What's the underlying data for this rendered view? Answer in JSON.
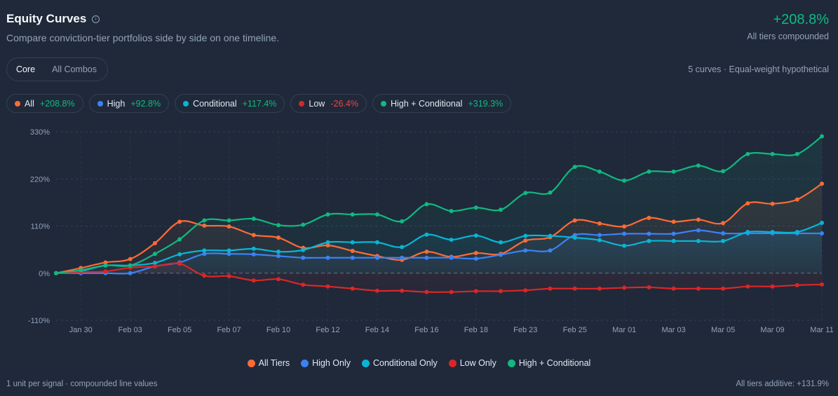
{
  "header": {
    "title": "Equity Curves",
    "info_icon": "info-circle-icon",
    "subtitle": "Compare conviction-tier portfolios side by side on one timeline.",
    "headline_value": "+208.8%",
    "headline_label": "All tiers compounded",
    "meta": "5 curves · Equal-weight hypothetical"
  },
  "tabs": [
    {
      "label": "Core",
      "active": true
    },
    {
      "label": "All Combos",
      "active": false
    }
  ],
  "chips": [
    {
      "name": "All",
      "value": "+208.8%",
      "color": "#ff6b35",
      "sign": "pos"
    },
    {
      "name": "High",
      "value": "+92.8%",
      "color": "#3b82f6",
      "sign": "pos"
    },
    {
      "name": "Conditional",
      "value": "+117.4%",
      "color": "#06b6d4",
      "sign": "pos"
    },
    {
      "name": "Low",
      "value": "-26.4%",
      "color": "#dc2626",
      "sign": "neg"
    },
    {
      "name": "High + Conditional",
      "value": "+319.3%",
      "color": "#10b981",
      "sign": "pos"
    }
  ],
  "chart_data": {
    "type": "line",
    "ylim": [
      -110,
      330
    ],
    "y_ticks": [
      330,
      220,
      110,
      0,
      -110
    ],
    "y_tick_labels": [
      "330%",
      "220%",
      "110%",
      "0%",
      "-110%"
    ],
    "x_tick_labels": [
      "Jan 30",
      "Feb 03",
      "Feb 05",
      "Feb 07",
      "Feb 10",
      "Feb 12",
      "Feb 14",
      "Feb 16",
      "Feb 18",
      "Feb 23",
      "Feb 25",
      "Mar 01",
      "Mar 03",
      "Mar 05",
      "Mar 09",
      "Mar 11"
    ],
    "grid": true,
    "legend_placement": "bottom",
    "series": [
      {
        "name": "All Tiers",
        "color": "#ff6b35",
        "values": [
          0,
          12,
          25,
          33,
          70,
          120,
          111,
          109,
          89,
          83,
          59,
          65,
          52,
          40,
          31,
          50,
          38,
          47,
          45,
          76,
          84,
          123,
          116,
          109,
          129,
          120,
          125,
          117,
          163,
          162,
          172,
          208.8
        ]
      },
      {
        "name": "High Only",
        "color": "#3b82f6",
        "values": [
          0,
          0,
          0,
          0,
          16,
          25,
          45,
          45,
          44,
          40,
          36,
          36,
          36,
          36,
          36,
          36,
          36,
          34,
          43,
          53,
          53,
          89,
          89,
          92,
          92,
          92,
          100,
          93,
          93,
          93,
          93,
          92.8
        ]
      },
      {
        "name": "Conditional Only",
        "color": "#06b6d4",
        "values": [
          0,
          5,
          18,
          18,
          24,
          44,
          53,
          53,
          57,
          50,
          54,
          72,
          72,
          72,
          61,
          90,
          78,
          88,
          72,
          87,
          87,
          83,
          77,
          64,
          75,
          75,
          75,
          75,
          96,
          96,
          96,
          117.4
        ]
      },
      {
        "name": "Low Only",
        "color": "#dc2626",
        "values": [
          0,
          3,
          4,
          13,
          16,
          22,
          -6,
          -7,
          -17,
          -14,
          -27,
          -31,
          -36,
          -41,
          -41,
          -44,
          -44,
          -42,
          -42,
          -40,
          -36,
          -36,
          -36,
          -34,
          -33,
          -36,
          -36,
          -36,
          -31,
          -31,
          -28,
          -26.4
        ]
      },
      {
        "name": "High + Conditional",
        "color": "#10b981",
        "values": [
          0,
          7,
          18,
          18,
          45,
          79,
          123,
          123,
          127,
          112,
          113,
          137,
          137,
          137,
          121,
          161,
          145,
          153,
          148,
          187,
          188,
          248,
          237,
          216,
          237,
          237,
          251,
          238,
          278,
          278,
          278,
          319.3
        ]
      }
    ]
  },
  "footer": {
    "left": "1 unit per signal · compounded line values",
    "right": "All tiers additive: +131.9%"
  }
}
